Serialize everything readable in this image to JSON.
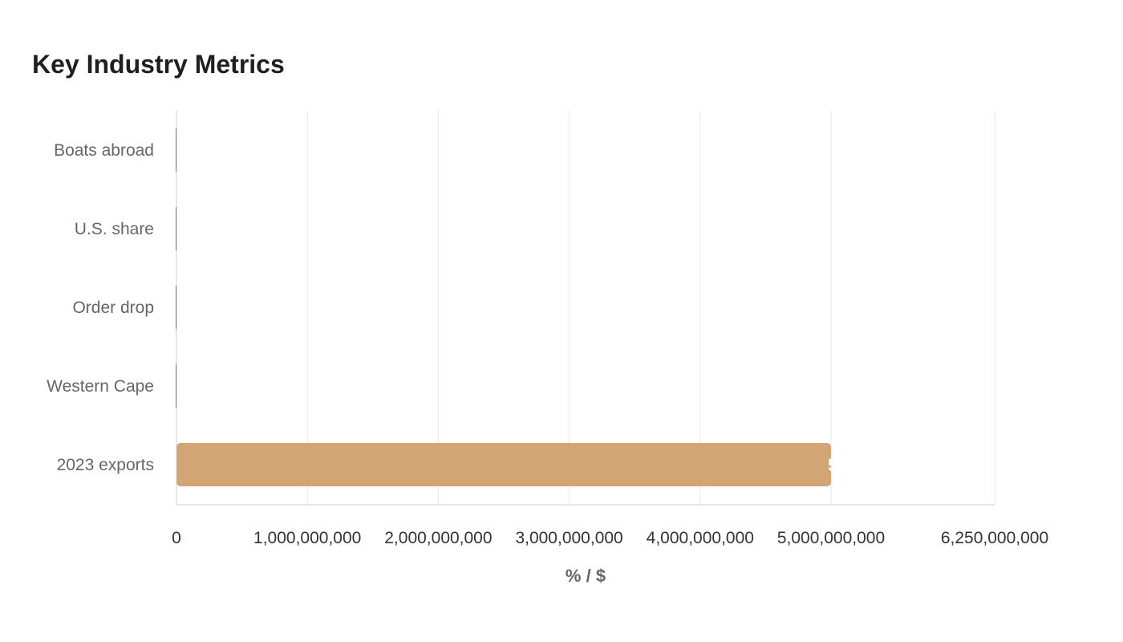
{
  "chart_data": {
    "type": "bar",
    "orientation": "horizontal",
    "title": "Key Industry Metrics",
    "xlabel": "% / $",
    "ylabel": "",
    "categories": [
      "Boats abroad",
      "U.S. share",
      "Order drop",
      "Western Cape",
      "2023 exports"
    ],
    "values": [
      0,
      0,
      0,
      0,
      5000000000
    ],
    "value_labels": [
      "",
      "",
      "",
      "",
      "5"
    ],
    "xlim": [
      0,
      6250000000
    ],
    "xticks": [
      0,
      1000000000,
      2000000000,
      3000000000,
      4000000000,
      5000000000,
      6250000000
    ],
    "xtick_labels": [
      "0",
      "1,000,000,000",
      "2,000,000,000",
      "3,000,000,000",
      "4,000,000,000",
      "5,000,000,000",
      "6,250,000,000"
    ],
    "grid": true,
    "legend": "none",
    "colors": {
      "bar": "#d4a574",
      "small_bar": "#333333",
      "grid": "#e6e6e6",
      "axis": "#cccccc"
    }
  }
}
